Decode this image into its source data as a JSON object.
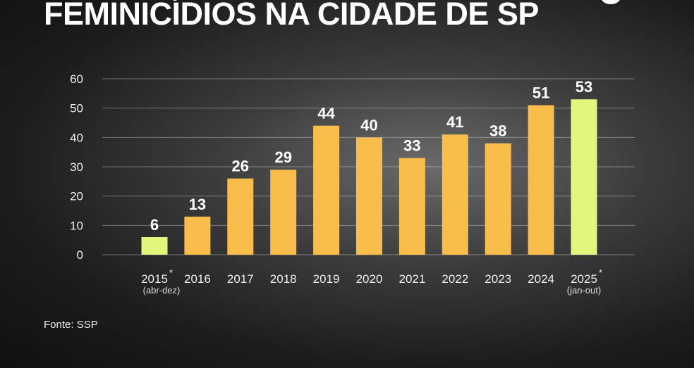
{
  "title": "FEMINICÍDIOS NA CIDADE DE SP",
  "source": "Fonte: SSP",
  "colors": {
    "regular": "#f8bd4a",
    "partial_year": "#e2f57c",
    "background": "#1e1e1e"
  },
  "chart_data": {
    "type": "bar",
    "title": "FEMINICÍDIOS NA CIDADE DE SP",
    "categories": [
      "2015",
      "2016",
      "2017",
      "2018",
      "2019",
      "2020",
      "2021",
      "2022",
      "2023",
      "2024",
      "2025"
    ],
    "category_notes": [
      "(abr-dez)",
      "",
      "",
      "",
      "",
      "",
      "",
      "",
      "",
      "",
      "(jan-out)"
    ],
    "category_marks": [
      "*",
      "",
      "",
      "",
      "",
      "",
      "",
      "",
      "",
      "",
      "*"
    ],
    "values": [
      6,
      13,
      26,
      29,
      44,
      40,
      33,
      41,
      38,
      51,
      53
    ],
    "highlighted": [
      true,
      false,
      false,
      false,
      false,
      false,
      false,
      false,
      false,
      false,
      true
    ],
    "yticks": [
      0,
      10,
      20,
      30,
      40,
      50,
      60
    ],
    "ylim": [
      0,
      60
    ],
    "grid": true,
    "xlabel": "",
    "ylabel": ""
  }
}
